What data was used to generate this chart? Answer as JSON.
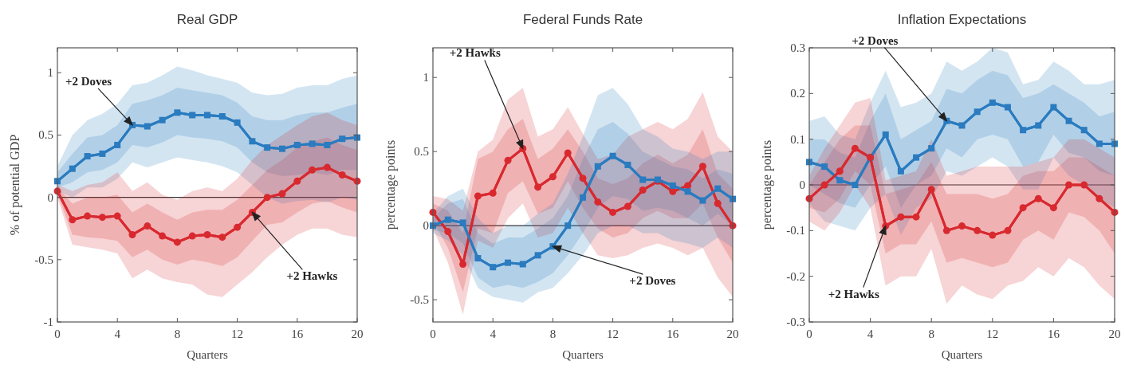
{
  "chart_data": [
    {
      "type": "line",
      "title": "Real GDP",
      "xlabel": "Quarters",
      "ylabel": "% of potential GDP",
      "x": [
        0,
        1,
        2,
        3,
        4,
        5,
        6,
        7,
        8,
        9,
        10,
        11,
        12,
        13,
        14,
        15,
        16,
        17,
        18,
        19,
        20
      ],
      "xlim": [
        0,
        20
      ],
      "xticks": [
        0,
        4,
        8,
        12,
        16,
        20
      ],
      "ylim": [
        -1,
        1.2
      ],
      "yticks": [
        -1,
        -0.5,
        0,
        0.5,
        1
      ],
      "grid": false,
      "legend": false,
      "line_style": "solid",
      "ref_lines": [
        {
          "axis": "y",
          "value": 0,
          "color": "#333333"
        }
      ],
      "series": [
        {
          "name": "+2 Doves",
          "type": "line",
          "color": "#2a7bbf",
          "marker": "square",
          "values": [
            0.13,
            0.23,
            0.33,
            0.35,
            0.42,
            0.58,
            0.57,
            0.62,
            0.68,
            0.66,
            0.66,
            0.65,
            0.6,
            0.45,
            0.4,
            0.39,
            0.42,
            0.43,
            0.42,
            0.47,
            0.48
          ],
          "lower": [
            0.08,
            0.12,
            0.2,
            0.22,
            0.28,
            0.42,
            0.4,
            0.44,
            0.5,
            0.48,
            0.47,
            0.45,
            0.4,
            0.28,
            0.2,
            0.17,
            0.18,
            0.2,
            0.18,
            0.22,
            0.22
          ],
          "upper": [
            0.2,
            0.35,
            0.48,
            0.5,
            0.58,
            0.75,
            0.78,
            0.82,
            0.88,
            0.86,
            0.84,
            0.82,
            0.76,
            0.65,
            0.62,
            0.62,
            0.66,
            0.68,
            0.68,
            0.72,
            0.75
          ]
        },
        {
          "name": "+2 Hawks",
          "type": "line",
          "color": "#d8292f",
          "marker": "circle",
          "values": [
            0.05,
            -0.18,
            -0.15,
            -0.16,
            -0.15,
            -0.3,
            -0.23,
            -0.31,
            -0.36,
            -0.31,
            -0.3,
            -0.32,
            -0.24,
            -0.12,
            0,
            0.03,
            0.13,
            0.22,
            0.24,
            0.18,
            0.13
          ],
          "lower": [
            0.03,
            -0.3,
            -0.32,
            -0.33,
            -0.35,
            -0.48,
            -0.42,
            -0.5,
            -0.54,
            -0.5,
            -0.52,
            -0.55,
            -0.48,
            -0.35,
            -0.22,
            -0.2,
            -0.12,
            -0.05,
            -0.03,
            -0.08,
            -0.12
          ],
          "upper": [
            0.08,
            -0.05,
            0.0,
            0.0,
            0.02,
            -0.12,
            -0.05,
            -0.12,
            -0.18,
            -0.12,
            -0.1,
            -0.1,
            -0.02,
            0.1,
            0.22,
            0.3,
            0.4,
            0.45,
            0.48,
            0.42,
            0.38
          ]
        },
        {
          "type": "line",
          "color": "#2a7bbf",
          "marker": "none",
          "values": [
            0.13,
            0.23,
            0.33,
            0.35,
            0.42,
            0.58,
            0.57,
            0.62,
            0.68,
            0.66,
            0.66,
            0.65,
            0.6,
            0.45,
            0.4,
            0.39,
            0.42,
            0.43,
            0.42,
            0.47,
            0.48
          ],
          "lower": [
            0.05,
            0.0,
            0.08,
            0.08,
            0.15,
            0.28,
            0.24,
            0.28,
            0.32,
            0.3,
            0.28,
            0.25,
            0.2,
            0.1,
            0.0,
            -0.05,
            -0.03,
            -0.02,
            -0.04,
            0.0,
            -0.02
          ],
          "upper": [
            0.25,
            0.5,
            0.62,
            0.67,
            0.75,
            0.9,
            0.92,
            0.98,
            1.05,
            1.02,
            0.98,
            0.95,
            0.92,
            0.84,
            0.82,
            0.83,
            0.88,
            0.9,
            0.9,
            0.95,
            0.98
          ]
        },
        {
          "type": "line",
          "color": "#d8292f",
          "marker": "none",
          "values": [
            0.05,
            -0.18,
            -0.15,
            -0.16,
            -0.15,
            -0.3,
            -0.23,
            -0.31,
            -0.36,
            -0.31,
            -0.3,
            -0.32,
            -0.24,
            -0.12,
            0,
            0.03,
            0.13,
            0.22,
            0.24,
            0.18,
            0.13
          ],
          "lower": [
            0.0,
            -0.38,
            -0.4,
            -0.42,
            -0.45,
            -0.65,
            -0.58,
            -0.65,
            -0.68,
            -0.7,
            -0.78,
            -0.8,
            -0.7,
            -0.6,
            -0.48,
            -0.38,
            -0.3,
            -0.25,
            -0.25,
            -0.3,
            -0.32
          ],
          "upper": [
            0.1,
            0.05,
            0.1,
            0.12,
            0.2,
            0.05,
            0.12,
            0.02,
            -0.02,
            0.05,
            0.08,
            0.05,
            0.15,
            0.3,
            0.42,
            0.5,
            0.58,
            0.65,
            0.68,
            0.62,
            0.58
          ]
        }
      ]
    },
    {
      "type": "line",
      "title": "Federal Funds Rate",
      "xlabel": "Quarters",
      "ylabel": "percentage points",
      "x": [
        0,
        1,
        2,
        3,
        4,
        5,
        6,
        7,
        8,
        9,
        10,
        11,
        12,
        13,
        14,
        15,
        16,
        17,
        18,
        19,
        20
      ],
      "xlim": [
        0,
        20
      ],
      "xticks": [
        0,
        4,
        8,
        12,
        16,
        20
      ],
      "ylim": [
        -0.65,
        1.2
      ],
      "yticks": [
        -0.5,
        0,
        0.5,
        1
      ],
      "grid": false,
      "legend": false,
      "line_style": "solid",
      "ref_lines": [
        {
          "axis": "y",
          "value": 0,
          "color": "#333333"
        }
      ],
      "series": [
        {
          "name": "+2 Hawks",
          "type": "line",
          "color": "#d8292f",
          "marker": "circle",
          "values": [
            0.09,
            -0.04,
            -0.26,
            0.2,
            0.22,
            0.44,
            0.52,
            0.26,
            0.33,
            0.49,
            0.32,
            0.16,
            0.09,
            0.13,
            0.24,
            0.3,
            0.23,
            0.27,
            0.4,
            0.15,
            0.0
          ],
          "lower": [
            0.03,
            -0.15,
            -0.45,
            -0.02,
            -0.05,
            0.22,
            0.3,
            0.08,
            0.12,
            0.3,
            0.12,
            -0.02,
            -0.08,
            -0.05,
            0.05,
            0.1,
            0.05,
            0.05,
            0.15,
            -0.08,
            -0.25
          ],
          "upper": [
            0.15,
            0.1,
            -0.05,
            0.45,
            0.5,
            0.65,
            0.72,
            0.45,
            0.52,
            0.65,
            0.5,
            0.32,
            0.28,
            0.32,
            0.42,
            0.48,
            0.42,
            0.48,
            0.65,
            0.35,
            0.25
          ]
        },
        {
          "name": "+2 Doves",
          "type": "line",
          "color": "#2a7bbf",
          "marker": "square",
          "values": [
            0.0,
            0.04,
            0.02,
            -0.22,
            -0.28,
            -0.25,
            -0.26,
            -0.2,
            -0.14,
            0.0,
            0.19,
            0.4,
            0.47,
            0.41,
            0.31,
            0.31,
            0.27,
            0.23,
            0.17,
            0.25,
            0.18
          ],
          "lower": [
            -0.03,
            -0.05,
            -0.12,
            -0.35,
            -0.42,
            -0.4,
            -0.42,
            -0.38,
            -0.32,
            -0.2,
            -0.05,
            0.12,
            0.2,
            0.18,
            0.1,
            0.12,
            0.1,
            0.05,
            0.0,
            0.08,
            0.0
          ],
          "upper": [
            0.05,
            0.15,
            0.18,
            -0.05,
            -0.12,
            -0.08,
            -0.08,
            -0.02,
            0.05,
            0.2,
            0.45,
            0.65,
            0.7,
            0.62,
            0.5,
            0.45,
            0.4,
            0.38,
            0.32,
            0.38,
            0.35
          ]
        },
        {
          "type": "line",
          "color": "#d8292f",
          "marker": "none",
          "values": [
            0.09,
            -0.04,
            -0.26,
            0.2,
            0.22,
            0.44,
            0.52,
            0.26,
            0.33,
            0.49,
            0.32,
            0.16,
            0.09,
            0.13,
            0.24,
            0.3,
            0.23,
            0.27,
            0.4,
            0.15,
            0.0
          ],
          "lower": [
            -0.02,
            -0.25,
            -0.6,
            -0.1,
            -0.15,
            0.05,
            0.15,
            -0.08,
            -0.05,
            0.12,
            -0.05,
            -0.2,
            -0.22,
            -0.2,
            -0.15,
            -0.12,
            -0.15,
            -0.2,
            -0.15,
            -0.35,
            -0.48
          ],
          "upper": [
            0.2,
            0.18,
            0.1,
            0.5,
            0.58,
            0.85,
            0.93,
            0.6,
            0.65,
            0.8,
            0.62,
            0.45,
            0.48,
            0.6,
            0.65,
            0.7,
            0.65,
            0.72,
            0.9,
            0.6,
            0.5
          ]
        },
        {
          "type": "line",
          "color": "#2a7bbf",
          "marker": "none",
          "values": [
            0.0,
            0.04,
            0.02,
            -0.22,
            -0.28,
            -0.25,
            -0.26,
            -0.2,
            -0.14,
            0.0,
            0.19,
            0.4,
            0.47,
            0.41,
            0.31,
            0.31,
            0.27,
            0.23,
            0.17,
            0.25,
            0.18
          ],
          "lower": [
            -0.05,
            -0.1,
            -0.2,
            -0.42,
            -0.48,
            -0.5,
            -0.52,
            -0.45,
            -0.42,
            -0.32,
            -0.2,
            -0.05,
            0.0,
            0.0,
            -0.05,
            -0.05,
            -0.1,
            -0.12,
            -0.15,
            -0.08,
            -0.15
          ],
          "upper": [
            0.08,
            0.2,
            0.25,
            0.05,
            -0.05,
            0.0,
            0.0,
            0.08,
            0.15,
            0.35,
            0.6,
            0.88,
            0.93,
            0.82,
            0.65,
            0.6,
            0.52,
            0.5,
            0.45,
            0.5,
            0.5
          ]
        }
      ]
    },
    {
      "type": "line",
      "title": "Inflation Expectations",
      "xlabel": "Quarters",
      "ylabel": "percentage points",
      "x": [
        0,
        1,
        2,
        3,
        4,
        5,
        6,
        7,
        8,
        9,
        10,
        11,
        12,
        13,
        14,
        15,
        16,
        17,
        18,
        19,
        20
      ],
      "xlim": [
        0,
        20
      ],
      "xticks": [
        0,
        4,
        8,
        12,
        16,
        20
      ],
      "ylim": [
        -0.3,
        0.3
      ],
      "yticks": [
        -0.3,
        -0.2,
        -0.1,
        0,
        0.1,
        0.2,
        0.3
      ],
      "grid": false,
      "legend": false,
      "line_style": "solid",
      "ref_lines": [
        {
          "axis": "y",
          "value": 0,
          "color": "#333333"
        }
      ],
      "series": [
        {
          "name": "+2 Doves",
          "type": "line",
          "color": "#2a7bbf",
          "marker": "square",
          "values": [
            0.05,
            0.04,
            0.01,
            0.0,
            0.06,
            0.11,
            0.03,
            0.06,
            0.08,
            0.14,
            0.13,
            0.16,
            0.18,
            0.17,
            0.12,
            0.13,
            0.17,
            0.14,
            0.12,
            0.09,
            0.09
          ],
          "lower": [
            0.0,
            -0.02,
            -0.04,
            -0.05,
            0.0,
            0.04,
            -0.05,
            0.0,
            0.02,
            0.08,
            0.06,
            0.1,
            0.11,
            0.1,
            0.04,
            0.05,
            0.11,
            0.07,
            0.06,
            0.03,
            0.02
          ],
          "upper": [
            0.1,
            0.1,
            0.07,
            0.06,
            0.14,
            0.2,
            0.1,
            0.12,
            0.14,
            0.21,
            0.2,
            0.23,
            0.25,
            0.24,
            0.19,
            0.2,
            0.22,
            0.2,
            0.18,
            0.15,
            0.16
          ]
        },
        {
          "name": "+2 Hawks",
          "type": "line",
          "color": "#d8292f",
          "marker": "circle",
          "values": [
            -0.03,
            0.0,
            0.03,
            0.08,
            0.06,
            -0.09,
            -0.07,
            -0.07,
            -0.01,
            -0.1,
            -0.09,
            -0.1,
            -0.11,
            -0.1,
            -0.05,
            -0.03,
            -0.05,
            0.0,
            0.0,
            -0.03,
            -0.06
          ],
          "lower": [
            -0.05,
            -0.06,
            -0.03,
            0.03,
            0.0,
            -0.15,
            -0.13,
            -0.13,
            -0.08,
            -0.17,
            -0.16,
            -0.17,
            -0.18,
            -0.17,
            -0.12,
            -0.1,
            -0.12,
            -0.06,
            -0.07,
            -0.1,
            -0.15
          ],
          "upper": [
            0.0,
            0.05,
            0.1,
            0.13,
            0.13,
            -0.02,
            -0.01,
            0.0,
            0.05,
            -0.02,
            -0.02,
            -0.02,
            -0.03,
            -0.02,
            0.02,
            0.03,
            0.03,
            0.06,
            0.06,
            0.04,
            0.02
          ]
        },
        {
          "type": "line",
          "color": "#2a7bbf",
          "marker": "none",
          "values": [
            0.05,
            0.04,
            0.01,
            0.0,
            0.06,
            0.11,
            0.03,
            0.06,
            0.08,
            0.14,
            0.13,
            0.16,
            0.18,
            0.17,
            0.12,
            0.13,
            0.17,
            0.14,
            0.12,
            0.09,
            0.09
          ],
          "lower": [
            -0.04,
            -0.08,
            -0.09,
            -0.1,
            -0.05,
            -0.02,
            -0.11,
            -0.05,
            -0.03,
            0.03,
            0.02,
            0.04,
            0.06,
            0.04,
            -0.01,
            -0.01,
            0.06,
            0.02,
            0.0,
            -0.03,
            -0.05
          ],
          "upper": [
            0.14,
            0.15,
            0.11,
            0.1,
            0.18,
            0.25,
            0.17,
            0.18,
            0.2,
            0.27,
            0.25,
            0.27,
            0.3,
            0.29,
            0.22,
            0.23,
            0.27,
            0.25,
            0.22,
            0.22,
            0.23
          ]
        },
        {
          "type": "line",
          "color": "#d8292f",
          "marker": "none",
          "values": [
            -0.03,
            0.0,
            0.03,
            0.08,
            0.06,
            -0.09,
            -0.07,
            -0.07,
            -0.01,
            -0.1,
            -0.09,
            -0.1,
            -0.11,
            -0.1,
            -0.05,
            -0.03,
            -0.05,
            0.0,
            0.0,
            -0.03,
            -0.06
          ],
          "lower": [
            -0.08,
            -0.1,
            -0.06,
            0.0,
            -0.05,
            -0.22,
            -0.2,
            -0.2,
            -0.14,
            -0.26,
            -0.22,
            -0.24,
            -0.25,
            -0.22,
            -0.21,
            -0.18,
            -0.2,
            -0.16,
            -0.18,
            -0.22,
            -0.25
          ],
          "upper": [
            0.02,
            0.08,
            0.13,
            0.18,
            0.19,
            0.01,
            0.02,
            0.03,
            0.1,
            0.02,
            0.03,
            0.04,
            0.04,
            0.04,
            0.04,
            0.05,
            0.06,
            0.1,
            0.1,
            0.08,
            0.06
          ]
        }
      ]
    }
  ]
}
